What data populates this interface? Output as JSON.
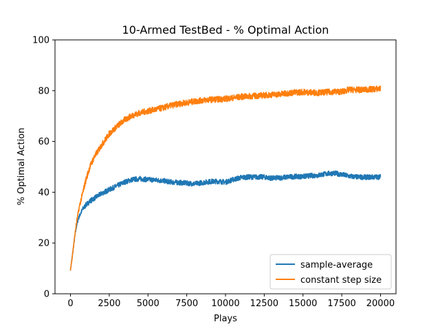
{
  "chart_data": {
    "type": "line",
    "title": "10-Armed TestBed - % Optimal Action",
    "xlabel": "Plays",
    "ylabel": "% Optimal Action",
    "xlim": [
      -1000,
      21000
    ],
    "ylim": [
      0,
      100
    ],
    "xticks": [
      0,
      2500,
      5000,
      7500,
      10000,
      12500,
      15000,
      17500,
      20000
    ],
    "yticks": [
      0,
      20,
      40,
      60,
      80,
      100
    ],
    "grid": false,
    "legend_position": "lower-right",
    "series": [
      {
        "name": "sample-average",
        "color": "#1f77b4",
        "noise": 1.0,
        "x": [
          0,
          100,
          200,
          300,
          400,
          500,
          600,
          800,
          1000,
          1250,
          1500,
          1750,
          2000,
          2500,
          3000,
          3500,
          4000,
          4500,
          5000,
          5500,
          6000,
          6500,
          7000,
          7500,
          8000,
          8500,
          9000,
          9500,
          10000,
          10500,
          11000,
          11500,
          12000,
          12500,
          13000,
          13500,
          14000,
          14500,
          15000,
          15500,
          16000,
          16500,
          17000,
          17500,
          18000,
          18500,
          19000,
          19500,
          20000
        ],
        "y": [
          9.5,
          14,
          19,
          23.5,
          27,
          29.5,
          31,
          33.5,
          35,
          36.5,
          37.5,
          38.5,
          39.5,
          41,
          42.5,
          44,
          45,
          45.3,
          45,
          44.8,
          44.5,
          44,
          43.8,
          43.6,
          43.3,
          43.8,
          44.2,
          44.3,
          44,
          45,
          45.8,
          46,
          46,
          46,
          45.5,
          45.7,
          46,
          46.2,
          46.2,
          46.5,
          46.7,
          47.3,
          47.5,
          47,
          46.3,
          46,
          45.9,
          46,
          46
        ]
      },
      {
        "name": "constant step size",
        "color": "#ff7f0e",
        "noise": 1.2,
        "x": [
          0,
          100,
          200,
          300,
          400,
          500,
          600,
          800,
          1000,
          1250,
          1500,
          1750,
          2000,
          2500,
          3000,
          3500,
          4000,
          4500,
          5000,
          5500,
          6000,
          6500,
          7000,
          7500,
          8000,
          8500,
          9000,
          9500,
          10000,
          10500,
          11000,
          11500,
          12000,
          12500,
          13000,
          13500,
          14000,
          14500,
          15000,
          15500,
          16000,
          16500,
          17000,
          17500,
          18000,
          18500,
          19000,
          19500,
          20000
        ],
        "y": [
          9.5,
          14,
          19,
          24,
          28.5,
          32,
          35,
          40,
          45,
          50,
          53.5,
          56,
          58.5,
          63,
          66,
          68.5,
          70.3,
          71.3,
          72,
          72.6,
          73.3,
          74.2,
          74.8,
          75.3,
          75.8,
          76.2,
          76.5,
          76.6,
          76.8,
          77.2,
          77.6,
          77.8,
          78,
          78.2,
          78.4,
          78.6,
          79,
          79.3,
          79.5,
          79.3,
          79.2,
          79.4,
          79.6,
          79.6,
          80.4,
          80.3,
          80.4,
          80.6,
          80.8
        ]
      }
    ]
  }
}
